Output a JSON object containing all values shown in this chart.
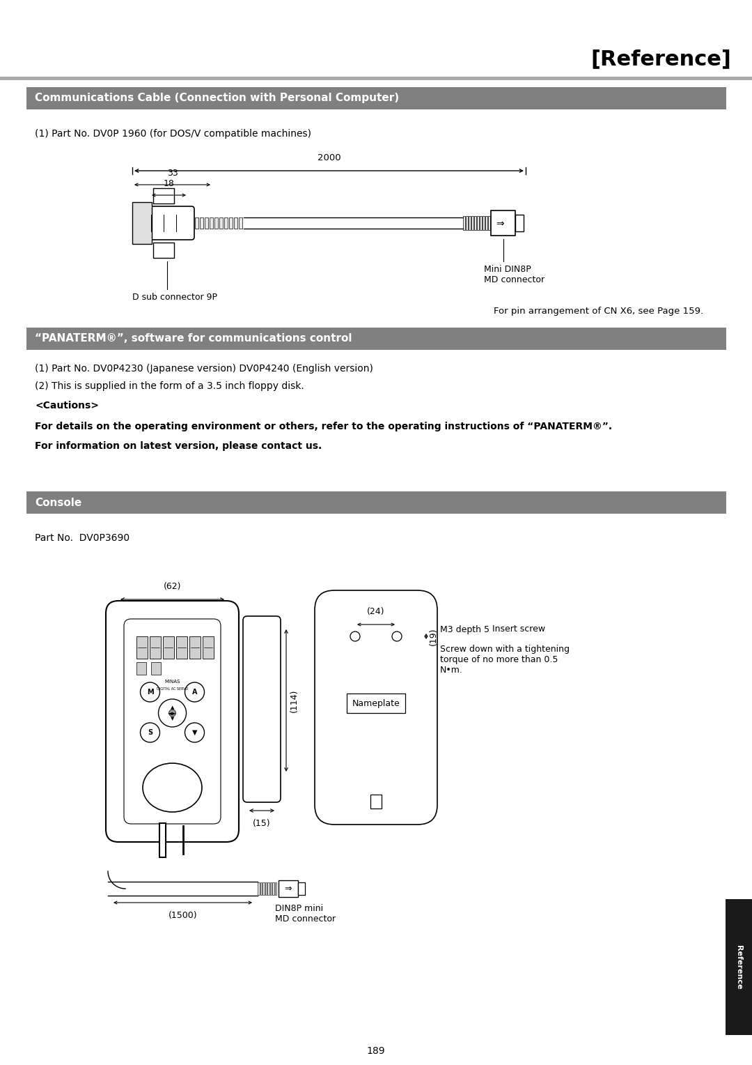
{
  "page_title": "[Reference]",
  "header_bar1_text": "Communications Cable (Connection with Personal Computer)",
  "header_bar2_text": "“PANATERM®”, software for communications control",
  "header_bar3_text": "Console",
  "header_bar_color": "#808080",
  "header_text_color": "#ffffff",
  "section1_line1": "(1) Part No. DV0P 1960 (for DOS/V compatible machines)",
  "section2_line1": "(1) Part No. DV0P4230 (Japanese version) DV0P4240 (English version)",
  "section2_line2": "(2) This is supplied in the form of a 3.5 inch floppy disk.",
  "section2_cautions": "<Cautions>",
  "section2_bold1": "For details on the operating environment or others, refer to the operating instructions of “PANATERM®”.",
  "section2_bold2": "For information on latest version, please contact us.",
  "section3_partno": "Part No.  DV0P3690",
  "cable_dim_2000": "2000",
  "cable_dim_33": "33",
  "cable_dim_18": "18",
  "label_dsub": "D sub connector 9P",
  "label_mini_din": "Mini DIN8P\nMD connector",
  "label_pin_ref": "For pin arrangement of CN X6, see Page 159.",
  "console_dim_62": "(62)",
  "console_dim_24": "(24)",
  "console_dim_114": "(114)",
  "console_dim_15": "(15)",
  "console_dim_1500": "(1500)",
  "console_dim_19": "(19)",
  "console_m3": "M3 depth 5",
  "console_insert": "Insert screw",
  "console_screw_text": "Screw down with a tightening\ntorque of no more than 0.5\nN•m.",
  "console_nameplate": "Nameplate",
  "console_din_label": "DIN8P mini\nMD connector",
  "page_number": "189",
  "reference_tab": "Reference",
  "bg_color": "#ffffff",
  "line_color": "#000000",
  "gray_line_color": "#888888"
}
